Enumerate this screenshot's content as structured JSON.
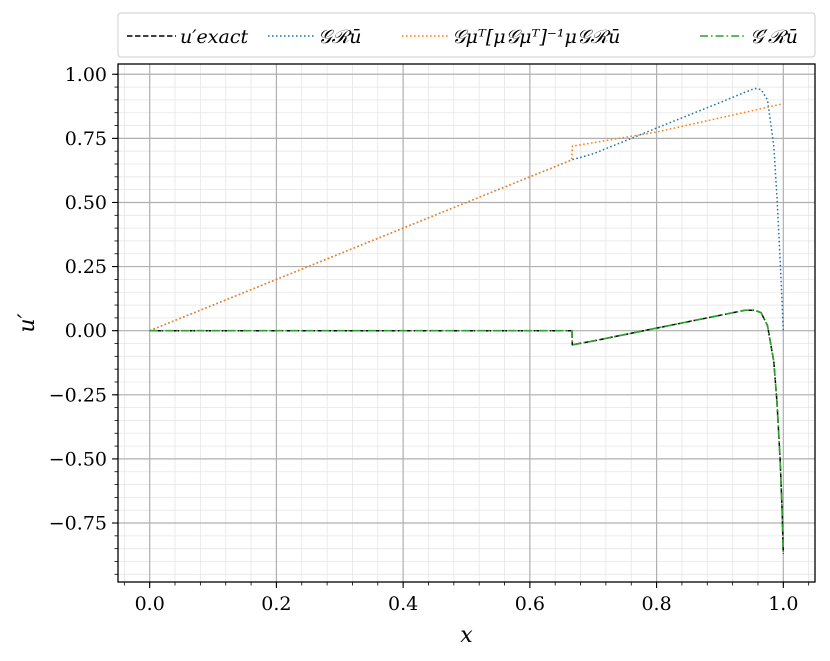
{
  "chart_data": {
    "type": "line",
    "xlabel": "x",
    "ylabel": "u′",
    "xlim": [
      -0.05,
      1.05
    ],
    "ylim": [
      -0.98,
      1.04
    ],
    "x_ticks": [
      0.0,
      0.2,
      0.4,
      0.6,
      0.8,
      1.0
    ],
    "y_ticks": [
      -0.75,
      -0.5,
      -0.25,
      0.0,
      0.25,
      0.5,
      0.75,
      1.0
    ],
    "x_tick_labels": [
      "0.0",
      "0.2",
      "0.4",
      "0.6",
      "0.8",
      "1.0"
    ],
    "y_tick_labels": [
      "−0.75",
      "−0.50",
      "−0.25",
      "0.00",
      "0.25",
      "0.50",
      "0.75",
      "1.00"
    ],
    "grid": {
      "major": true,
      "minor": true
    },
    "legend_position": "top, outside plot",
    "series": [
      {
        "name": "u′exact",
        "color": "#000000",
        "style": "dashed",
        "x": [
          0.0,
          0.2,
          0.4,
          0.6,
          0.6665,
          0.667,
          0.7,
          0.8,
          0.9,
          0.94,
          0.955,
          0.965,
          0.975,
          0.985,
          0.99,
          0.995,
          0.998,
          1.0
        ],
        "y": [
          0.0,
          0.0,
          0.0,
          0.0,
          0.0,
          -0.055,
          -0.04,
          0.01,
          0.06,
          0.08,
          0.08,
          0.07,
          0.02,
          -0.12,
          -0.28,
          -0.5,
          -0.7,
          -0.87
        ]
      },
      {
        "name": "𝒢ℛū",
        "color": "#1f77b4",
        "style": "dotted",
        "x": [
          0.0,
          0.2,
          0.4,
          0.6,
          0.667,
          0.7,
          0.8,
          0.9,
          0.94,
          0.955,
          0.965,
          0.975,
          0.985,
          0.99,
          0.995,
          1.0
        ],
        "y": [
          0.0,
          0.2,
          0.4,
          0.6,
          0.667,
          0.69,
          0.79,
          0.89,
          0.93,
          0.945,
          0.94,
          0.9,
          0.72,
          0.52,
          0.28,
          0.0
        ]
      },
      {
        "name": "𝒢μᵀ[μ𝒢μᵀ]⁻¹μ𝒢ℛū",
        "color": "#ff7f0e",
        "style": "dotted",
        "x": [
          0.0,
          0.2,
          0.4,
          0.6,
          0.666,
          0.667,
          0.68,
          0.8,
          0.9,
          1.0
        ],
        "y": [
          0.0,
          0.2,
          0.4,
          0.6,
          0.666,
          0.72,
          0.725,
          0.775,
          0.83,
          0.885
        ]
      },
      {
        "name": "𝒢′ℛū",
        "color": "#2ca02c",
        "style": "dashdot",
        "x": [
          0.0,
          0.2,
          0.4,
          0.6,
          0.6665,
          0.667,
          0.7,
          0.8,
          0.9,
          0.94,
          0.955,
          0.965,
          0.975,
          0.985,
          0.99,
          0.995,
          0.998,
          1.0
        ],
        "y": [
          0.0,
          0.0,
          0.0,
          0.0,
          0.0,
          -0.055,
          -0.04,
          0.01,
          0.06,
          0.08,
          0.08,
          0.07,
          0.02,
          -0.12,
          -0.28,
          -0.5,
          -0.7,
          -0.87
        ]
      }
    ]
  }
}
